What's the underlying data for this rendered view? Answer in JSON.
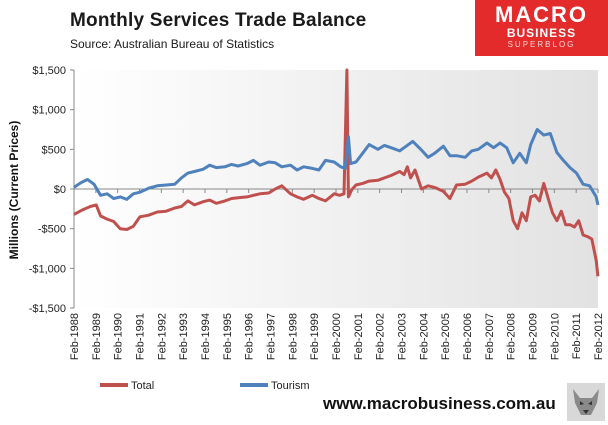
{
  "header": {
    "title": "Monthly  Services Trade  Balance",
    "subtitle": "Source:  Australian Bureau of Statistics"
  },
  "logo": {
    "line1": "MACRO",
    "line2": "BUSINESS",
    "line3": "SUPERBLOG"
  },
  "footer": {
    "website": "www.macrobusiness.com.au"
  },
  "colors": {
    "total": "#c0504d",
    "tourism": "#4f81bd",
    "plot_background": "#ebebeb",
    "logo_red": "#e32b2b"
  },
  "chart_data": {
    "type": "line",
    "title": "Monthly  Services Trade  Balance",
    "ylabel": "Millions (Current Prices)",
    "xlabel": "",
    "ylim": [
      -1500,
      1500
    ],
    "yticks": [
      1500,
      1000,
      500,
      0,
      -500,
      -1000,
      -1500
    ],
    "ytick_labels": [
      "$1,500",
      "$1,000",
      "$500",
      "$0",
      "-$500",
      "-$1,000",
      "-$1,500"
    ],
    "xlim": [
      1988.083,
      2012.083
    ],
    "xtick_labels": [
      "Feb-1988",
      "Feb-1989",
      "Feb-1990",
      "Feb-1991",
      "Feb-1992",
      "Feb-1993",
      "Feb-1994",
      "Feb-1995",
      "Feb-1996",
      "Feb-1997",
      "Feb-1998",
      "Feb-1999",
      "Feb-2000",
      "Feb-2001",
      "Feb-2002",
      "Feb-2003",
      "Feb-2004",
      "Feb-2005",
      "Feb-2006",
      "Feb-2007",
      "Feb-2008",
      "Feb-2009",
      "Feb-2010",
      "Feb-2011",
      "Feb-2012"
    ],
    "grid": false,
    "legend_position": "bottom-left",
    "series": [
      {
        "name": "Total",
        "x": [
          1988.08,
          1988.5,
          1988.83,
          1989.1,
          1989.3,
          1989.6,
          1989.9,
          1990.2,
          1990.5,
          1990.8,
          1991.1,
          1991.5,
          1991.9,
          1992.3,
          1992.7,
          1993.0,
          1993.3,
          1993.6,
          1994.0,
          1994.3,
          1994.6,
          1995.0,
          1995.3,
          1995.6,
          1996.0,
          1996.3,
          1996.6,
          1997.0,
          1997.3,
          1997.6,
          1998.0,
          1998.3,
          1998.6,
          1999.0,
          1999.3,
          1999.6,
          2000.0,
          2000.25,
          2000.45,
          2000.58,
          2000.65,
          2000.72,
          2000.8,
          2001.0,
          2001.3,
          2001.6,
          2002.0,
          2002.3,
          2002.6,
          2003.0,
          2003.2,
          2003.35,
          2003.5,
          2003.7,
          2004.0,
          2004.3,
          2004.6,
          2005.0,
          2005.3,
          2005.6,
          2006.0,
          2006.3,
          2006.6,
          2007.0,
          2007.2,
          2007.4,
          2007.6,
          2007.8,
          2008.0,
          2008.2,
          2008.4,
          2008.6,
          2008.8,
          2009.0,
          2009.2,
          2009.4,
          2009.6,
          2009.8,
          2010.0,
          2010.2,
          2010.4,
          2010.6,
          2010.8,
          2011.0,
          2011.2,
          2011.4,
          2011.6,
          2011.8,
          2012.0,
          2012.08
        ],
        "values": [
          -320,
          -260,
          -220,
          -200,
          -340,
          -380,
          -410,
          -500,
          -510,
          -470,
          -350,
          -330,
          -290,
          -280,
          -240,
          -220,
          -150,
          -200,
          -160,
          -140,
          -180,
          -150,
          -120,
          -110,
          -100,
          -80,
          -60,
          -50,
          0,
          40,
          -60,
          -100,
          -130,
          -80,
          -120,
          -150,
          -60,
          -80,
          -60,
          1500,
          -100,
          -60,
          -10,
          50,
          70,
          100,
          110,
          140,
          170,
          220,
          180,
          280,
          140,
          240,
          0,
          40,
          20,
          -30,
          -120,
          50,
          60,
          100,
          150,
          200,
          140,
          240,
          120,
          -40,
          -120,
          -400,
          -500,
          -300,
          -400,
          -100,
          -80,
          -150,
          70,
          -120,
          -300,
          -400,
          -280,
          -450,
          -450,
          -480,
          -400,
          -580,
          -600,
          -630,
          -900,
          -1100
        ]
      },
      {
        "name": "Tourism",
        "x": [
          1988.08,
          1988.4,
          1988.7,
          1989.0,
          1989.3,
          1989.6,
          1989.9,
          1990.2,
          1990.5,
          1990.8,
          1991.1,
          1991.5,
          1991.9,
          1992.3,
          1992.7,
          1993.0,
          1993.3,
          1993.6,
          1994.0,
          1994.3,
          1994.6,
          1995.0,
          1995.3,
          1995.6,
          1996.0,
          1996.3,
          1996.6,
          1997.0,
          1997.3,
          1997.6,
          1998.0,
          1998.3,
          1998.6,
          1999.0,
          1999.3,
          1999.6,
          2000.0,
          2000.3,
          2000.5,
          2000.65,
          2000.75,
          2001.0,
          2001.3,
          2001.6,
          2002.0,
          2002.3,
          2002.6,
          2003.0,
          2003.3,
          2003.6,
          2004.0,
          2004.3,
          2004.6,
          2005.0,
          2005.3,
          2005.6,
          2006.0,
          2006.3,
          2006.6,
          2007.0,
          2007.3,
          2007.6,
          2007.9,
          2008.2,
          2008.5,
          2008.8,
          2009.0,
          2009.3,
          2009.6,
          2009.9,
          2010.2,
          2010.5,
          2010.8,
          2011.1,
          2011.4,
          2011.7,
          2012.0,
          2012.08
        ],
        "values": [
          20,
          80,
          120,
          60,
          -80,
          -60,
          -120,
          -100,
          -130,
          -60,
          -40,
          10,
          40,
          50,
          60,
          140,
          200,
          220,
          250,
          300,
          270,
          280,
          310,
          290,
          320,
          360,
          300,
          340,
          330,
          280,
          300,
          240,
          280,
          260,
          240,
          360,
          340,
          280,
          260,
          660,
          320,
          340,
          450,
          560,
          500,
          550,
          520,
          480,
          540,
          600,
          490,
          400,
          450,
          540,
          420,
          420,
          400,
          480,
          500,
          580,
          520,
          580,
          520,
          330,
          450,
          330,
          560,
          750,
          680,
          700,
          460,
          360,
          270,
          200,
          60,
          40,
          -100,
          -200
        ]
      }
    ]
  }
}
